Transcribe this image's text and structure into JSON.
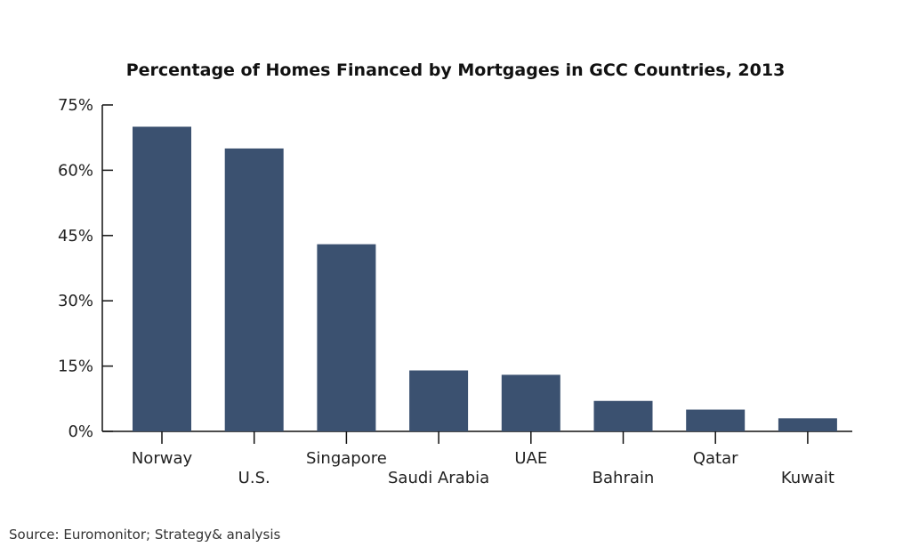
{
  "chart_data": {
    "type": "bar",
    "title": "Percentage of Homes Financed by Mortgages in GCC Countries, 2013",
    "categories": [
      "Norway",
      "U.S.",
      "Singapore",
      "Saudi Arabia",
      "UAE",
      "Bahrain",
      "Qatar",
      "Kuwait"
    ],
    "values": [
      70,
      65,
      43,
      14,
      13,
      7,
      5,
      3
    ],
    "ylim": [
      0,
      75
    ],
    "yticks": [
      0,
      15,
      30,
      45,
      60,
      75
    ],
    "ytick_labels": [
      "0%",
      "15%",
      "30%",
      "45%",
      "60%",
      "75%"
    ],
    "xlabel": "",
    "ylabel": "",
    "grid": false,
    "bar_color": "#3b5170",
    "source": "Source: Euromonitor; Strategy& analysis"
  }
}
